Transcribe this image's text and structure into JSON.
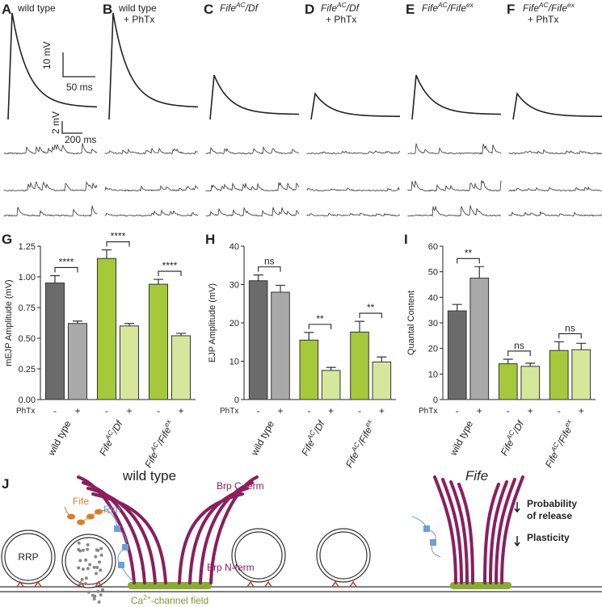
{
  "panels": [
    {
      "letter": "A",
      "title": [
        [
          "wild type"
        ]
      ]
    },
    {
      "letter": "B",
      "title": [
        [
          "wild type"
        ],
        [
          "+ PhTx"
        ]
      ]
    },
    {
      "letter": "C",
      "title": [
        [
          "Fife",
          "AC",
          "/Df"
        ]
      ]
    },
    {
      "letter": "D",
      "title": [
        [
          "Fife",
          "AC",
          "/Df"
        ],
        [
          "+ PhTx"
        ]
      ]
    },
    {
      "letter": "E",
      "title": [
        [
          "Fife",
          "AC",
          "/Fife",
          "ex"
        ]
      ]
    },
    {
      "letter": "F",
      "title": [
        [
          "Fife",
          "AC",
          "/Fife",
          "ex"
        ],
        [
          "+ PhTx"
        ]
      ]
    }
  ],
  "scale_bars": {
    "ejp_v": "10 mV",
    "ejp_t": "50 ms",
    "mini_v": "2 mV",
    "mini_t": "200 ms"
  },
  "chart_data": [
    {
      "type": "bar",
      "panel": "G",
      "y_label": "mEJP Amplitude (mV)",
      "row_label": "PhTx",
      "categories": [
        "-",
        "+",
        "-",
        "+",
        "-",
        "+"
      ],
      "groups": [
        [
          "wild type"
        ],
        [
          "Fife",
          "AC",
          "/Df"
        ],
        [
          "Fife",
          "AC",
          "/Fife",
          "ex"
        ]
      ],
      "values": [
        0.95,
        0.62,
        1.15,
        0.6,
        0.94,
        0.52
      ],
      "errors": [
        0.06,
        0.02,
        0.07,
        0.02,
        0.04,
        0.02
      ],
      "colors": [
        "#6b6b6b",
        "#a9a9a9",
        "#a6c93c",
        "#d6e79c",
        "#a6c93c",
        "#d6e79c"
      ],
      "ylim": [
        0,
        1.25
      ],
      "yticks": [
        {
          "value": 0,
          "label": "0.00"
        },
        0.25,
        {
          "value": 0.5,
          "label": "0.50"
        },
        0.75,
        {
          "value": 1,
          "label": "1.00"
        },
        1.25
      ],
      "significance": [
        "****",
        "****",
        "****"
      ]
    },
    {
      "type": "bar",
      "panel": "H",
      "y_label": "EJP Amplitude (mV)",
      "row_label": "PhTx",
      "categories": [
        "-",
        "+",
        "-",
        "+",
        "-",
        "+"
      ],
      "groups": [
        [
          "wild type"
        ],
        [
          "Fife",
          "AC",
          "/Df"
        ],
        [
          "Fife",
          "AC",
          "/Fife",
          "ex"
        ]
      ],
      "values": [
        31,
        28,
        15.5,
        7.6,
        17.6,
        9.8
      ],
      "errors": [
        1.5,
        1.8,
        2,
        0.8,
        2.8,
        1.3
      ],
      "colors": [
        "#6b6b6b",
        "#a9a9a9",
        "#a6c93c",
        "#d6e79c",
        "#a6c93c",
        "#d6e79c"
      ],
      "ylim": [
        0,
        40
      ],
      "yticks": [
        0,
        10,
        20,
        30,
        40
      ],
      "significance": [
        "ns",
        "**",
        "**"
      ]
    },
    {
      "type": "bar",
      "panel": "I",
      "y_label": "Quantal Content",
      "row_label": "PhTx",
      "categories": [
        "-",
        "+",
        "-",
        "+",
        "-",
        "+"
      ],
      "groups": [
        [
          "wild type"
        ],
        [
          "Fife",
          "AC",
          "/Df"
        ],
        [
          "Fife",
          "AC",
          "/Fife",
          "ex"
        ]
      ],
      "values": [
        34.7,
        47.5,
        14,
        13,
        19.2,
        19.5
      ],
      "errors": [
        2.5,
        4.5,
        1.8,
        1.2,
        3.4,
        2.5
      ],
      "colors": [
        "#6b6b6b",
        "#a9a9a9",
        "#a6c93c",
        "#d6e79c",
        "#a6c93c",
        "#d6e79c"
      ],
      "ylim": [
        0,
        60
      ],
      "yticks": [
        0,
        10,
        20,
        30,
        40,
        50,
        60
      ],
      "significance": [
        "**",
        "ns",
        "ns"
      ]
    }
  ],
  "diagram": {
    "letter": "J",
    "left_title": "wild type",
    "right_title": "Fife",
    "brp_c": "Brp C-term",
    "brp_n": "Brp N-term",
    "fife": "Fife",
    "rim": "Rim",
    "rrp": "RRP",
    "channel": [
      "Ca",
      "2+",
      "-channel field"
    ],
    "effects": [
      [
        "Probability",
        "of release"
      ],
      [
        "Plasticity"
      ]
    ]
  }
}
